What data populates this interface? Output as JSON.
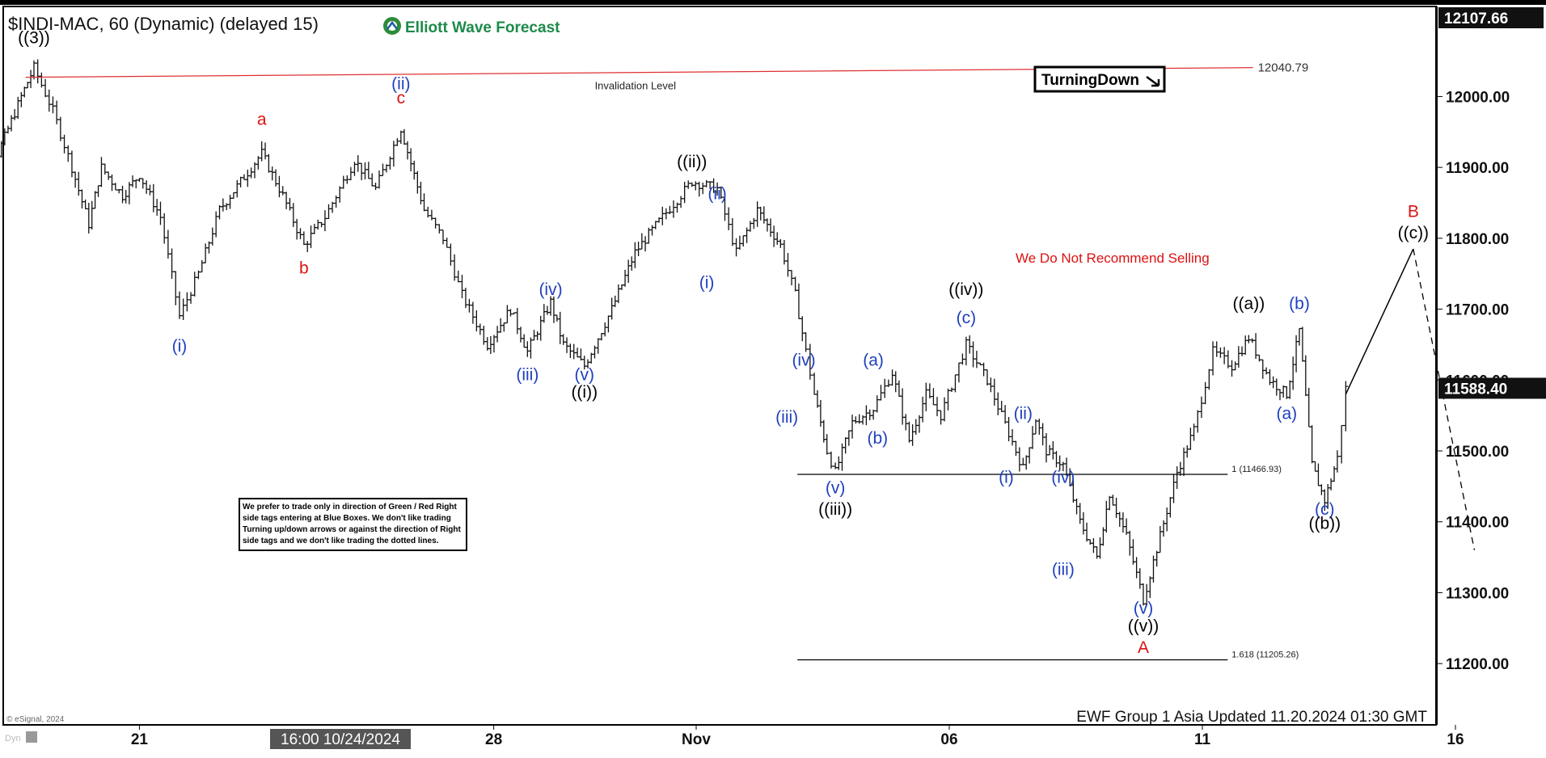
{
  "header": {
    "symbol_title": "$INDI-MAC, 60 (Dynamic) (delayed 15)",
    "brand": "Elliott Wave Forecast"
  },
  "footer": {
    "copyright": "© eSignal, 2024",
    "dyn_label": "Dyn",
    "update_note": "EWF Group 1 Asia Updated 11.20.2024 01:30 GMT",
    "crosshair_time": "16:00 10/24/2024"
  },
  "badge": {
    "label": "TurningDown"
  },
  "colors": {
    "wave_blue": "#1f3fbf",
    "wave_red": "#dd1111",
    "wave_black": "#000000",
    "invalidation_line": "#e03030",
    "price_bar": "#111111"
  },
  "chart_data": {
    "type": "ohlc",
    "y_axis": {
      "ticks": [
        11200,
        11300,
        11400,
        11500,
        11600,
        11700,
        11800,
        11900,
        12000
      ],
      "tick_labels": [
        "11200.00",
        "11300.00",
        "11400.00",
        "11500.00",
        "11600.00",
        "11700.00",
        "11800.00",
        "11900.00",
        "12000.00"
      ],
      "top_label": "12107.66",
      "last_price": "11588.40",
      "range": [
        11150,
        12107.66
      ]
    },
    "x_axis": {
      "labels": [
        {
          "text": "21",
          "date": "2024-10-21"
        },
        {
          "text": "28",
          "date": "2024-10-28"
        },
        {
          "text": "Nov",
          "date": "2024-11-01"
        },
        {
          "text": "06",
          "date": "2024-11-06"
        },
        {
          "text": "11",
          "date": "2024-11-11"
        },
        {
          "text": "16",
          "date": "2024-11-16"
        }
      ]
    },
    "price_path": [
      [
        "2024-10-17 12:00",
        11880
      ],
      [
        "2024-10-17 22:00",
        11950
      ],
      [
        "2024-10-18 05:00",
        11920
      ],
      [
        "2024-10-18 16:00",
        12000
      ],
      [
        "2024-10-18 22:00",
        12040.79
      ],
      [
        "2024-10-19 07:00",
        11980
      ],
      [
        "2024-10-19 16:00",
        11900
      ],
      [
        "2024-10-20 00:00",
        11820
      ],
      [
        "2024-10-20 06:00",
        11900
      ],
      [
        "2024-10-20 16:00",
        11860
      ],
      [
        "2024-10-21 00:00",
        11890
      ],
      [
        "2024-10-21 10:00",
        11830
      ],
      [
        "2024-10-21 19:00",
        11690
      ],
      [
        "2024-10-22 04:00",
        11750
      ],
      [
        "2024-10-22 14:00",
        11840
      ],
      [
        "2024-10-23 00:00",
        11880
      ],
      [
        "2024-10-23 10:00",
        11920
      ],
      [
        "2024-10-23 20:00",
        11860
      ],
      [
        "2024-10-24 06:00",
        11790
      ],
      [
        "2024-10-24 16:00",
        11830
      ],
      [
        "2024-10-25 06:00",
        11910
      ],
      [
        "2024-10-25 16:00",
        11870
      ],
      [
        "2024-10-26 04:00",
        11955
      ],
      [
        "2024-10-26 15:00",
        11840
      ],
      [
        "2024-10-27 00:00",
        11800
      ],
      [
        "2024-10-27 09:00",
        11720
      ],
      [
        "2024-10-27 21:00",
        11650
      ],
      [
        "2024-10-28 08:00",
        11700
      ],
      [
        "2024-10-28 16:00",
        11640
      ],
      [
        "2024-10-29 03:00",
        11710
      ],
      [
        "2024-10-29 09:00",
        11650
      ],
      [
        "2024-10-29 19:00",
        11620
      ],
      [
        "2024-10-30 08:00",
        11700
      ],
      [
        "2024-10-30 19:00",
        11780
      ],
      [
        "2024-10-31 08:00",
        11830
      ],
      [
        "2024-10-31 22:00",
        11880
      ],
      [
        "2024-11-01 10:00",
        11870
      ],
      [
        "2024-11-01 19:00",
        11780
      ],
      [
        "2024-11-02 05:00",
        11840
      ],
      [
        "2024-11-02 16:00",
        11790
      ],
      [
        "2024-11-02 23:00",
        11720
      ],
      [
        "2024-11-03 04:00",
        11640
      ],
      [
        "2024-11-03 08:00",
        11580
      ],
      [
        "2024-11-03 14:00",
        11500
      ],
      [
        "2024-11-03 18:00",
        11470
      ],
      [
        "2024-11-04 02:00",
        11540
      ],
      [
        "2024-11-04 12:00",
        11560
      ],
      [
        "2024-11-04 21:00",
        11610
      ],
      [
        "2024-11-05 05:00",
        11515
      ],
      [
        "2024-11-05 13:00",
        11580
      ],
      [
        "2024-11-05 20:00",
        11550
      ],
      [
        "2024-11-06 08:00",
        11650
      ],
      [
        "2024-11-06 18:00",
        11600
      ],
      [
        "2024-11-07 11:00",
        11475
      ],
      [
        "2024-11-07 17:00",
        11545
      ],
      [
        "2024-11-07 22:00",
        11500
      ],
      [
        "2024-11-08 06:00",
        11480
      ],
      [
        "2024-11-08 14:00",
        11400
      ],
      [
        "2024-11-08 22:00",
        11350
      ],
      [
        "2024-11-09 04:00",
        11440
      ],
      [
        "2024-11-09 12:00",
        11380
      ],
      [
        "2024-11-09 20:00",
        11290
      ],
      [
        "2024-11-10 04:00",
        11380
      ],
      [
        "2024-11-10 12:00",
        11470
      ],
      [
        "2024-11-10 20:00",
        11530
      ],
      [
        "2024-11-11 05:00",
        11640
      ],
      [
        "2024-11-11 14:00",
        11620
      ],
      [
        "2024-11-11 22:00",
        11660
      ],
      [
        "2024-11-12 08:00",
        11600
      ],
      [
        "2024-11-12 16:00",
        11580
      ],
      [
        "2024-11-12 22:00",
        11670
      ],
      [
        "2024-11-13 04:00",
        11480
      ],
      [
        "2024-11-13 10:00",
        11430
      ],
      [
        "2024-11-13 16:00",
        11490
      ],
      [
        "2024-11-13 20:00",
        11588.4
      ]
    ],
    "projection": {
      "solid": [
        [
          "2024-11-13 20:00",
          11580
        ],
        [
          "2024-11-15 04:00",
          11785
        ]
      ],
      "dashed": [
        [
          "2024-11-15 04:00",
          11785
        ],
        [
          "2024-11-16 09:00",
          11360
        ]
      ]
    },
    "levels": [
      {
        "name": "invalidation",
        "value": 12040.79,
        "value_label": "12040.79",
        "caption": "Invalidation Level",
        "x_start": "2024-10-18 18:00",
        "x_end": "2024-11-12 00:00"
      },
      {
        "name": "fib-1",
        "value": 11466.93,
        "label": "1 (11466.93)",
        "x_start": "2024-11-03 00:00",
        "x_end": "2024-11-11 12:00"
      },
      {
        "name": "fib-1618",
        "value": 11205.26,
        "label": "1.618 (11205.26)",
        "x_start": "2024-11-03 00:00",
        "x_end": "2024-11-11 12:00"
      }
    ],
    "wave_labels": [
      {
        "text": "((3))",
        "x": "2024-10-18 22:00",
        "y": 12075,
        "color": "black"
      },
      {
        "text": "(i)",
        "x": "2024-10-21 19:00",
        "y": 11640,
        "color": "blue"
      },
      {
        "text": "a",
        "x": "2024-10-23 10:00",
        "y": 11960,
        "color": "red"
      },
      {
        "text": "b",
        "x": "2024-10-24 06:00",
        "y": 11750,
        "color": "red"
      },
      {
        "text": "(ii)",
        "x": "2024-10-26 04:00",
        "y": 12010,
        "color": "blue"
      },
      {
        "text": "c",
        "x": "2024-10-26 04:00",
        "y": 11990,
        "color": "red"
      },
      {
        "text": "(iii)",
        "x": "2024-10-28 16:00",
        "y": 11600,
        "color": "blue"
      },
      {
        "text": "(iv)",
        "x": "2024-10-29 03:00",
        "y": 11720,
        "color": "blue"
      },
      {
        "text": "(v)",
        "x": "2024-10-29 19:00",
        "y": 11600,
        "color": "blue"
      },
      {
        "text": "((i))",
        "x": "2024-10-29 19:00",
        "y": 11575,
        "color": "black"
      },
      {
        "text": "((ii))",
        "x": "2024-10-31 22:00",
        "y": 11900,
        "color": "black"
      },
      {
        "text": "(ii)",
        "x": "2024-11-01 10:00",
        "y": 11855,
        "color": "blue"
      },
      {
        "text": "(i)",
        "x": "2024-11-01 05:00",
        "y": 11730,
        "color": "blue"
      },
      {
        "text": "(iv)",
        "x": "2024-11-03 03:00",
        "y": 11620,
        "color": "blue"
      },
      {
        "text": "(iii)",
        "x": "2024-11-02 19:00",
        "y": 11540,
        "color": "blue"
      },
      {
        "text": "(a)",
        "x": "2024-11-04 12:00",
        "y": 11620,
        "color": "blue"
      },
      {
        "text": "(b)",
        "x": "2024-11-04 14:00",
        "y": 11510,
        "color": "blue"
      },
      {
        "text": "(v)",
        "x": "2024-11-03 18:00",
        "y": 11440,
        "color": "blue"
      },
      {
        "text": "((iii))",
        "x": "2024-11-03 18:00",
        "y": 11410,
        "color": "black"
      },
      {
        "text": "((iv))",
        "x": "2024-11-06 08:00",
        "y": 11720,
        "color": "black"
      },
      {
        "text": "(c)",
        "x": "2024-11-06 08:00",
        "y": 11680,
        "color": "blue"
      },
      {
        "text": "(ii)",
        "x": "2024-11-07 11:00",
        "y": 11545,
        "color": "blue"
      },
      {
        "text": "(i)",
        "x": "2024-11-07 03:00",
        "y": 11455,
        "color": "blue"
      },
      {
        "text": "(iv)",
        "x": "2024-11-08 06:00",
        "y": 11455,
        "color": "blue"
      },
      {
        "text": "(iii)",
        "x": "2024-11-08 06:00",
        "y": 11325,
        "color": "blue"
      },
      {
        "text": "(v)",
        "x": "2024-11-09 20:00",
        "y": 11270,
        "color": "blue"
      },
      {
        "text": "((v))",
        "x": "2024-11-09 20:00",
        "y": 11245,
        "color": "black"
      },
      {
        "text": "A",
        "x": "2024-11-09 20:00",
        "y": 11215,
        "color": "red"
      },
      {
        "text": "((a))",
        "x": "2024-11-11 22:00",
        "y": 11700,
        "color": "black"
      },
      {
        "text": "(b)",
        "x": "2024-11-12 22:00",
        "y": 11700,
        "color": "blue"
      },
      {
        "text": "(a)",
        "x": "2024-11-12 16:00",
        "y": 11545,
        "color": "blue"
      },
      {
        "text": "(c)",
        "x": "2024-11-13 10:00",
        "y": 11410,
        "color": "blue"
      },
      {
        "text": "((b))",
        "x": "2024-11-13 10:00",
        "y": 11390,
        "color": "black"
      },
      {
        "text": "B",
        "x": "2024-11-15 04:00",
        "y": 11830,
        "color": "red"
      },
      {
        "text": "((c))",
        "x": "2024-11-15 04:00",
        "y": 11800,
        "color": "black"
      }
    ],
    "annotations": {
      "recommendation": "We Do Not Recommend Selling",
      "disclaimer_lines": [
        "We prefer to trade only in direction of Green / Red Right",
        "side tags entering at Blue Boxes. We don't like trading",
        "Turning up/down arrows or against the direction of Right",
        "side tags and we don't like trading the dotted lines."
      ]
    },
    "grid": false,
    "legend": "none"
  }
}
